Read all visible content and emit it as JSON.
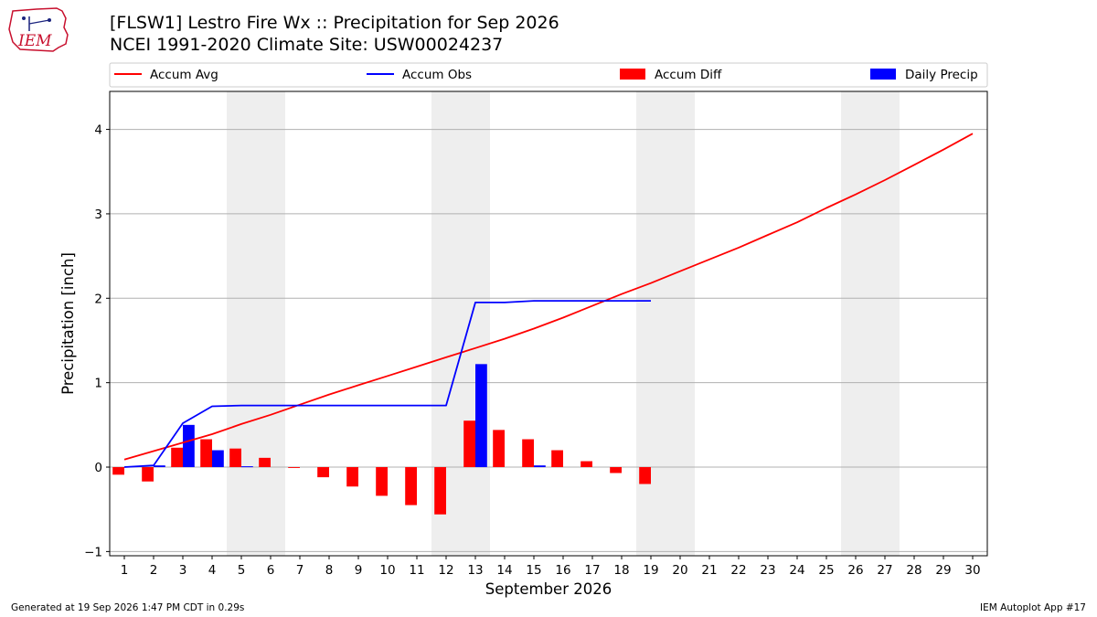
{
  "header": {
    "title_line1": "[FLSW1] Lestro Fire Wx :: Precipitation for Sep 2026",
    "title_line2": "NCEI 1991-2020 Climate Site: USW00024237",
    "logo_text": "IEM"
  },
  "footer": {
    "generated": "Generated at 19 Sep 2026 1:47 PM CDT in 0.29s",
    "app": "IEM Autoplot App #17"
  },
  "colors": {
    "avg": "#ff0000",
    "obs": "#0000ff",
    "diff": "#ff0000",
    "daily": "#0000ff",
    "weekend_band": "#eeeeee",
    "grid": "#b0b0b0",
    "logo": "#c8102e"
  },
  "chart_data": {
    "type": "bar",
    "xlabel": "September 2026",
    "ylabel": "Precipitation [inch]",
    "xlim": [
      0.5,
      30.5
    ],
    "ylim": [
      -1.05,
      4.45
    ],
    "x_ticks": [
      1,
      2,
      3,
      4,
      5,
      6,
      7,
      8,
      9,
      10,
      11,
      12,
      13,
      14,
      15,
      16,
      17,
      18,
      19,
      20,
      21,
      22,
      23,
      24,
      25,
      26,
      27,
      28,
      29,
      30
    ],
    "y_ticks": [
      -1,
      0,
      1,
      2,
      3,
      4
    ],
    "grid": "horizontal",
    "legend_position": "top",
    "weekend_days": [
      5,
      6,
      12,
      13,
      19,
      20,
      26,
      27
    ],
    "legend": [
      "Accum Avg",
      "Accum Obs",
      "Accum Diff",
      "Daily Precip"
    ],
    "series": [
      {
        "name": "Accum Avg",
        "type": "line",
        "x": [
          1,
          2,
          3,
          4,
          5,
          6,
          7,
          8,
          9,
          10,
          11,
          12,
          13,
          14,
          15,
          16,
          17,
          18,
          19,
          20,
          21,
          22,
          23,
          24,
          25,
          26,
          27,
          28,
          29,
          30
        ],
        "values": [
          0.09,
          0.19,
          0.29,
          0.39,
          0.51,
          0.62,
          0.74,
          0.86,
          0.97,
          1.08,
          1.19,
          1.3,
          1.41,
          1.52,
          1.64,
          1.77,
          1.91,
          2.05,
          2.18,
          2.32,
          2.46,
          2.6,
          2.75,
          2.9,
          3.07,
          3.23,
          3.4,
          3.58,
          3.76,
          3.95
        ]
      },
      {
        "name": "Accum Obs",
        "type": "line",
        "x": [
          1,
          2,
          3,
          4,
          5,
          6,
          7,
          8,
          9,
          10,
          11,
          12,
          13,
          14,
          15,
          16,
          17,
          18,
          19
        ],
        "values": [
          0.0,
          0.02,
          0.52,
          0.72,
          0.73,
          0.73,
          0.73,
          0.73,
          0.73,
          0.73,
          0.73,
          0.73,
          1.95,
          1.95,
          1.97,
          1.97,
          1.97,
          1.97,
          1.97
        ]
      },
      {
        "name": "Accum Diff",
        "type": "bar",
        "x": [
          1,
          2,
          3,
          4,
          5,
          6,
          7,
          8,
          9,
          10,
          11,
          12,
          13,
          14,
          15,
          16,
          17,
          18,
          19
        ],
        "values": [
          -0.09,
          -0.17,
          0.23,
          0.33,
          0.22,
          0.11,
          -0.01,
          -0.12,
          -0.23,
          -0.34,
          -0.45,
          -0.56,
          0.55,
          0.44,
          0.33,
          0.2,
          0.07,
          -0.07,
          -0.2
        ]
      },
      {
        "name": "Daily Precip",
        "type": "bar",
        "x": [
          1,
          2,
          3,
          4,
          5,
          6,
          7,
          8,
          9,
          10,
          11,
          12,
          13,
          14,
          15,
          16,
          17,
          18,
          19
        ],
        "values": [
          0.0,
          0.02,
          0.5,
          0.2,
          0.01,
          0,
          0,
          0,
          0,
          0,
          0,
          0,
          1.22,
          0,
          0.02,
          0,
          0,
          0,
          0
        ]
      }
    ]
  }
}
